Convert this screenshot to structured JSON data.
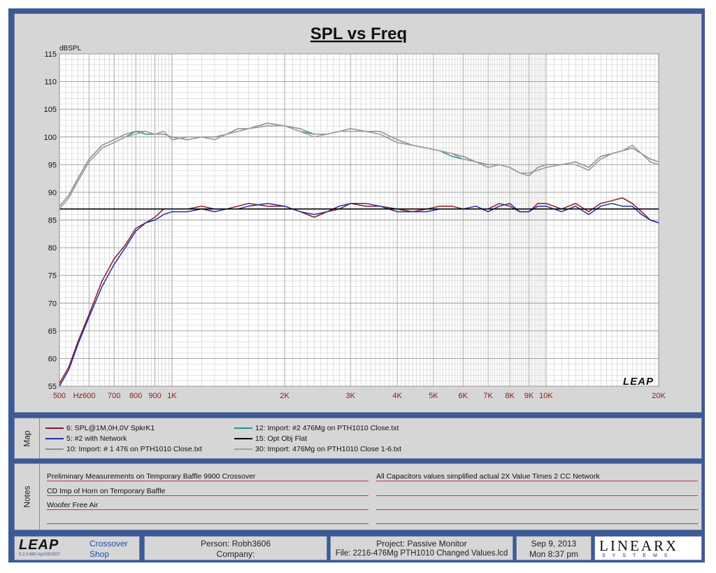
{
  "chart_data": {
    "type": "line",
    "title": "SPL vs Freq",
    "ylabel": "dBSPL",
    "xscale": "log",
    "xlim": [
      500,
      20000
    ],
    "ylim": [
      55,
      115
    ],
    "grid": true,
    "y_ticks": [
      "115",
      "110",
      "105",
      "100",
      "95",
      "90",
      "85",
      "80",
      "75",
      "70",
      "65",
      "60",
      "55"
    ],
    "x_ticks": [
      {
        "value": 500,
        "label": "500"
      },
      {
        "value": 560,
        "label": "Hz"
      },
      {
        "value": 600,
        "label": "600"
      },
      {
        "value": 700,
        "label": "700"
      },
      {
        "value": 800,
        "label": "800"
      },
      {
        "value": 900,
        "label": "900"
      },
      {
        "value": 1000,
        "label": "1K"
      },
      {
        "value": 2000,
        "label": "2K"
      },
      {
        "value": 3000,
        "label": "3K"
      },
      {
        "value": 4000,
        "label": "4K"
      },
      {
        "value": 5000,
        "label": "5K"
      },
      {
        "value": 6000,
        "label": "6K"
      },
      {
        "value": 7000,
        "label": "7K"
      },
      {
        "value": 8000,
        "label": "8K"
      },
      {
        "value": 9000,
        "label": "9K"
      },
      {
        "value": 10000,
        "label": "10K"
      },
      {
        "value": 20000,
        "label": "20K"
      }
    ],
    "watermark": "LEAP",
    "series": [
      {
        "name": "6: SPL@1M,0H,0V SpkrK1",
        "color": "#8b1a1a",
        "x": [
          500,
          530,
          560,
          600,
          650,
          700,
          750,
          800,
          850,
          900,
          950,
          1000,
          1100,
          1200,
          1300,
          1400,
          1500,
          1600,
          1800,
          2000,
          2200,
          2400,
          2600,
          2800,
          3000,
          3300,
          3600,
          4000,
          4400,
          4800,
          5200,
          5600,
          6000,
          6500,
          7000,
          7500,
          8000,
          8500,
          9000,
          9500,
          10000,
          11000,
          12000,
          13000,
          14000,
          15000,
          16000,
          17000,
          18000,
          19000,
          20000
        ],
        "y": [
          55.5,
          58.5,
          63,
          68,
          74,
          78,
          80.5,
          83.5,
          84.5,
          85.5,
          87,
          87,
          87,
          87.5,
          87,
          87,
          87.5,
          88,
          87.5,
          87.5,
          86.5,
          85.5,
          86.5,
          87,
          88,
          87.5,
          87.5,
          87,
          86.5,
          87,
          87.5,
          87.5,
          87,
          87,
          87,
          88,
          87.5,
          86.5,
          86.5,
          88,
          88,
          87,
          88,
          86.5,
          88,
          88.5,
          89,
          88,
          86.5,
          85,
          84.5
        ]
      },
      {
        "name": "5: #2 with Network",
        "color": "#1f2fa8",
        "x": [
          500,
          530,
          560,
          600,
          650,
          700,
          750,
          800,
          850,
          900,
          950,
          1000,
          1100,
          1200,
          1300,
          1400,
          1500,
          1600,
          1800,
          2000,
          2200,
          2400,
          2600,
          2800,
          3000,
          3300,
          3600,
          4000,
          4400,
          4800,
          5200,
          5600,
          6000,
          6500,
          7000,
          7500,
          8000,
          8500,
          9000,
          9500,
          10000,
          11000,
          12000,
          13000,
          14000,
          15000,
          16000,
          17000,
          18000,
          19000,
          20000
        ],
        "y": [
          55,
          58,
          62.5,
          67.5,
          73,
          77,
          80,
          83,
          84.5,
          85,
          86,
          86.5,
          86.5,
          87,
          86.5,
          87,
          87,
          87.5,
          88,
          87.5,
          86.5,
          86,
          86.5,
          87.5,
          88,
          88,
          87.5,
          86.5,
          86.5,
          86.5,
          87,
          87,
          87,
          87.5,
          86.5,
          87.5,
          88,
          86.5,
          86.5,
          87.5,
          87.5,
          86.5,
          87.5,
          86,
          87.5,
          88,
          87.5,
          87.5,
          86,
          85,
          84.5
        ]
      },
      {
        "name": "12: Import: #2 476Mg on PTH1010 Close.txt",
        "color": "#2a8f8f",
        "x": [
          500,
          530,
          560,
          600,
          650,
          700,
          750,
          800,
          850,
          900,
          950,
          1000,
          1100,
          1200,
          1300,
          1400,
          1500,
          1600,
          1800,
          2000,
          2200,
          2400,
          2600,
          2800,
          3000,
          3300,
          3600,
          4000,
          4400,
          4800,
          5200,
          5600,
          6000,
          6500,
          7000,
          7500,
          8000,
          8500,
          9000,
          9500,
          10000,
          11000,
          12000,
          13000,
          14000,
          15000,
          16000,
          17000,
          18000,
          19000,
          20000
        ],
        "y": [
          87,
          89,
          92,
          95.5,
          98,
          99,
          100,
          101,
          100.5,
          100.5,
          101,
          99.5,
          100,
          100,
          99.5,
          100.5,
          101,
          101.5,
          102,
          102,
          101,
          100.5,
          100.5,
          101,
          101,
          101,
          100.5,
          99,
          98.5,
          98,
          97.5,
          96.5,
          96,
          95.5,
          94.5,
          95,
          94.5,
          93.5,
          93.5,
          94,
          94.5,
          95,
          95,
          94,
          96,
          97,
          97.5,
          98.5,
          97,
          95.5,
          95
        ]
      },
      {
        "name": "10: Import: # 1 476 on PTH1010 Close.txt",
        "color": "#8c8c8c",
        "x": [
          500,
          530,
          560,
          600,
          650,
          700,
          750,
          800,
          850,
          900,
          950,
          1000,
          1100,
          1200,
          1300,
          1400,
          1500,
          1600,
          1800,
          2000,
          2200,
          2400,
          2600,
          2800,
          3000,
          3300,
          3600,
          4000,
          4400,
          4800,
          5200,
          5600,
          6000,
          6500,
          7000,
          7500,
          8000,
          8500,
          9000,
          9500,
          10000,
          11000,
          12000,
          13000,
          14000,
          15000,
          16000,
          17000,
          18000,
          19000,
          20000
        ],
        "y": [
          87.5,
          89.5,
          92.5,
          96,
          98.5,
          99.5,
          100.5,
          101,
          101,
          100.5,
          100.5,
          100,
          99.5,
          100,
          100,
          100.5,
          101.5,
          101.5,
          102.5,
          102,
          101.5,
          100.5,
          100.5,
          101,
          101.5,
          101,
          101,
          99.5,
          98.5,
          98,
          97.5,
          97,
          96.5,
          95.5,
          95,
          95,
          94.5,
          93.5,
          93,
          94.5,
          95,
          95,
          95.5,
          94.5,
          96.5,
          97,
          97.5,
          98,
          97,
          96,
          95.5
        ]
      },
      {
        "name": "15: Opt Obj Flat",
        "color": "#000000",
        "x": [
          500,
          20000
        ],
        "y": [
          87,
          87
        ]
      },
      {
        "name": "30: Import: 476Mg on PTH1010 Close 1-6.txt",
        "color": "#a0a0a0",
        "x": [
          500,
          530,
          560,
          600,
          650,
          700,
          750,
          800,
          850,
          900,
          950,
          1000,
          1100,
          1200,
          1300,
          1400,
          1500,
          1600,
          1800,
          2000,
          2200,
          2400,
          2600,
          2800,
          3000,
          3300,
          3600,
          4000,
          4400,
          4800,
          5200,
          5600,
          6000,
          6500,
          7000,
          7500,
          8000,
          8500,
          9000,
          9500,
          10000,
          11000,
          12000,
          13000,
          14000,
          15000,
          16000,
          17000,
          18000,
          19000,
          20000
        ],
        "y": [
          87,
          89,
          92,
          95.5,
          98,
          99,
          100,
          100.5,
          101,
          100.5,
          101,
          99.5,
          100,
          100,
          99.5,
          100.5,
          101,
          101.5,
          102,
          102,
          101,
          100,
          100.5,
          101,
          101,
          101,
          100.5,
          99,
          98.5,
          98,
          97.5,
          97,
          96,
          95.5,
          94.5,
          95,
          94.5,
          93.5,
          93.5,
          94,
          94.5,
          95,
          95,
          94,
          96,
          97,
          97.5,
          98.5,
          97,
          95.5,
          95
        ]
      }
    ]
  },
  "map": {
    "label": "Map",
    "entries": [
      {
        "text": "6: SPL@1M,0H,0V SpkrK1",
        "color": "#8b1a1a"
      },
      {
        "text": "5: #2 with Network",
        "color": "#1f2fa8"
      },
      {
        "text": "10: Import: # 1 476 on PTH1010 Close.txt",
        "color": "#8c8c8c"
      },
      {
        "text": "12: Import: #2 476Mg on PTH1010 Close.txt",
        "color": "#2a8f8f"
      },
      {
        "text": "15: Opt Obj Flat",
        "color": "#000000"
      },
      {
        "text": "30: Import: 476Mg on PTH1010 Close 1-6.txt",
        "color": "#a0a0a0"
      }
    ]
  },
  "notes": {
    "label": "Notes",
    "left": [
      "Preliminary Measurements on Temporary Baffle  9900 Crossover",
      "CD Imp of Horn on Temporary Baffle",
      "Woofer Free Air",
      ""
    ],
    "right": [
      "All Capacitors values simplified actual 2X Value Times 2 CC Network",
      "",
      "",
      ""
    ]
  },
  "footer": {
    "logo": "LEAP",
    "version": "5.2.0.860   Apr/29/2007",
    "product_line1": "Crossover",
    "product_line2": "Shop",
    "person": "Person: Robh3606",
    "company": "Company:",
    "project": "Project: Passive Monitor",
    "file": "File: 2216-476Mg PTH1010 Changed Values.lcd",
    "date": "Sep  9, 2013",
    "time": "Mon  8:37 pm",
    "brand": "LINEARX",
    "brand_sub": "SYSTEMS"
  }
}
